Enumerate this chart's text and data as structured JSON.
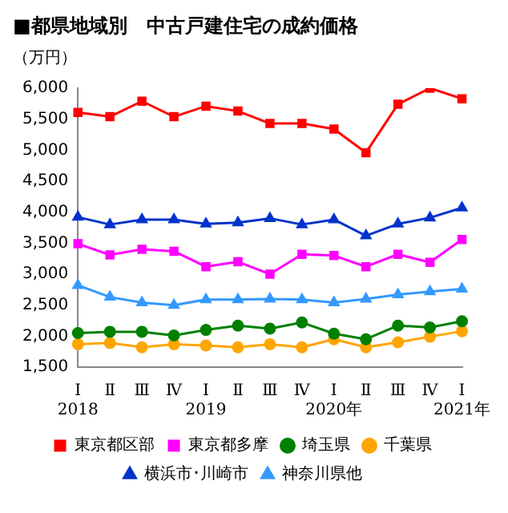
{
  "chart_data": {
    "type": "line",
    "title": "■都県地域別　中古戸建住宅の成約価格",
    "ylabel": "（万円）",
    "categories": [
      "Ⅰ\n2018",
      "Ⅱ",
      "Ⅲ",
      "Ⅳ",
      "Ⅰ\n2019",
      "Ⅱ",
      "Ⅲ",
      "Ⅳ",
      "Ⅰ\n2020年",
      "Ⅱ",
      "Ⅲ",
      "Ⅳ",
      "Ⅰ\n2021年"
    ],
    "series": [
      {
        "name": "東京都区部",
        "color": "#ff0000",
        "marker": "square",
        "values": [
          5610,
          5540,
          5790,
          5540,
          5710,
          5630,
          5430,
          5430,
          5340,
          4960,
          5740,
          6000,
          5830
        ]
      },
      {
        "name": "東京都多摩",
        "color": "#ff00ff",
        "marker": "square",
        "values": [
          3490,
          3310,
          3400,
          3370,
          3120,
          3200,
          3000,
          3320,
          3300,
          3120,
          3320,
          3190,
          3560
        ]
      },
      {
        "name": "埼玉県",
        "color": "#008000",
        "marker": "circle",
        "values": [
          2050,
          2070,
          2070,
          2010,
          2100,
          2170,
          2120,
          2220,
          2040,
          1950,
          2170,
          2140,
          2240
        ]
      },
      {
        "name": "千葉県",
        "color": "#ffa500",
        "marker": "circle",
        "values": [
          1870,
          1890,
          1820,
          1870,
          1850,
          1820,
          1870,
          1820,
          1950,
          1820,
          1900,
          1990,
          2080
        ]
      },
      {
        "name": "横浜市･川崎市",
        "color": "#0033cc",
        "marker": "triangle",
        "values": [
          3920,
          3800,
          3880,
          3880,
          3810,
          3830,
          3900,
          3800,
          3880,
          3620,
          3810,
          3910,
          4070
        ]
      },
      {
        "name": "神奈川県他",
        "color": "#3399ff",
        "marker": "triangle",
        "values": [
          2820,
          2630,
          2540,
          2500,
          2590,
          2590,
          2600,
          2590,
          2540,
          2600,
          2670,
          2720,
          2760
        ]
      }
    ],
    "ylim": [
      1500,
      6000
    ],
    "yticks": [
      {
        "value": 1500,
        "label": "1,500"
      },
      {
        "value": 2000,
        "label": "2,000"
      },
      {
        "value": 2500,
        "label": "2,500"
      },
      {
        "value": 3000,
        "label": "3,000"
      },
      {
        "value": 3500,
        "label": "3,500"
      },
      {
        "value": 4000,
        "label": "4,000"
      },
      {
        "value": 4500,
        "label": "4,500"
      },
      {
        "value": 5000,
        "label": "5,000"
      },
      {
        "value": 5500,
        "label": "5,500"
      },
      {
        "value": 6000,
        "label": "6,000"
      }
    ],
    "grid": false,
    "legend": "bottom",
    "line_style": "solid"
  }
}
